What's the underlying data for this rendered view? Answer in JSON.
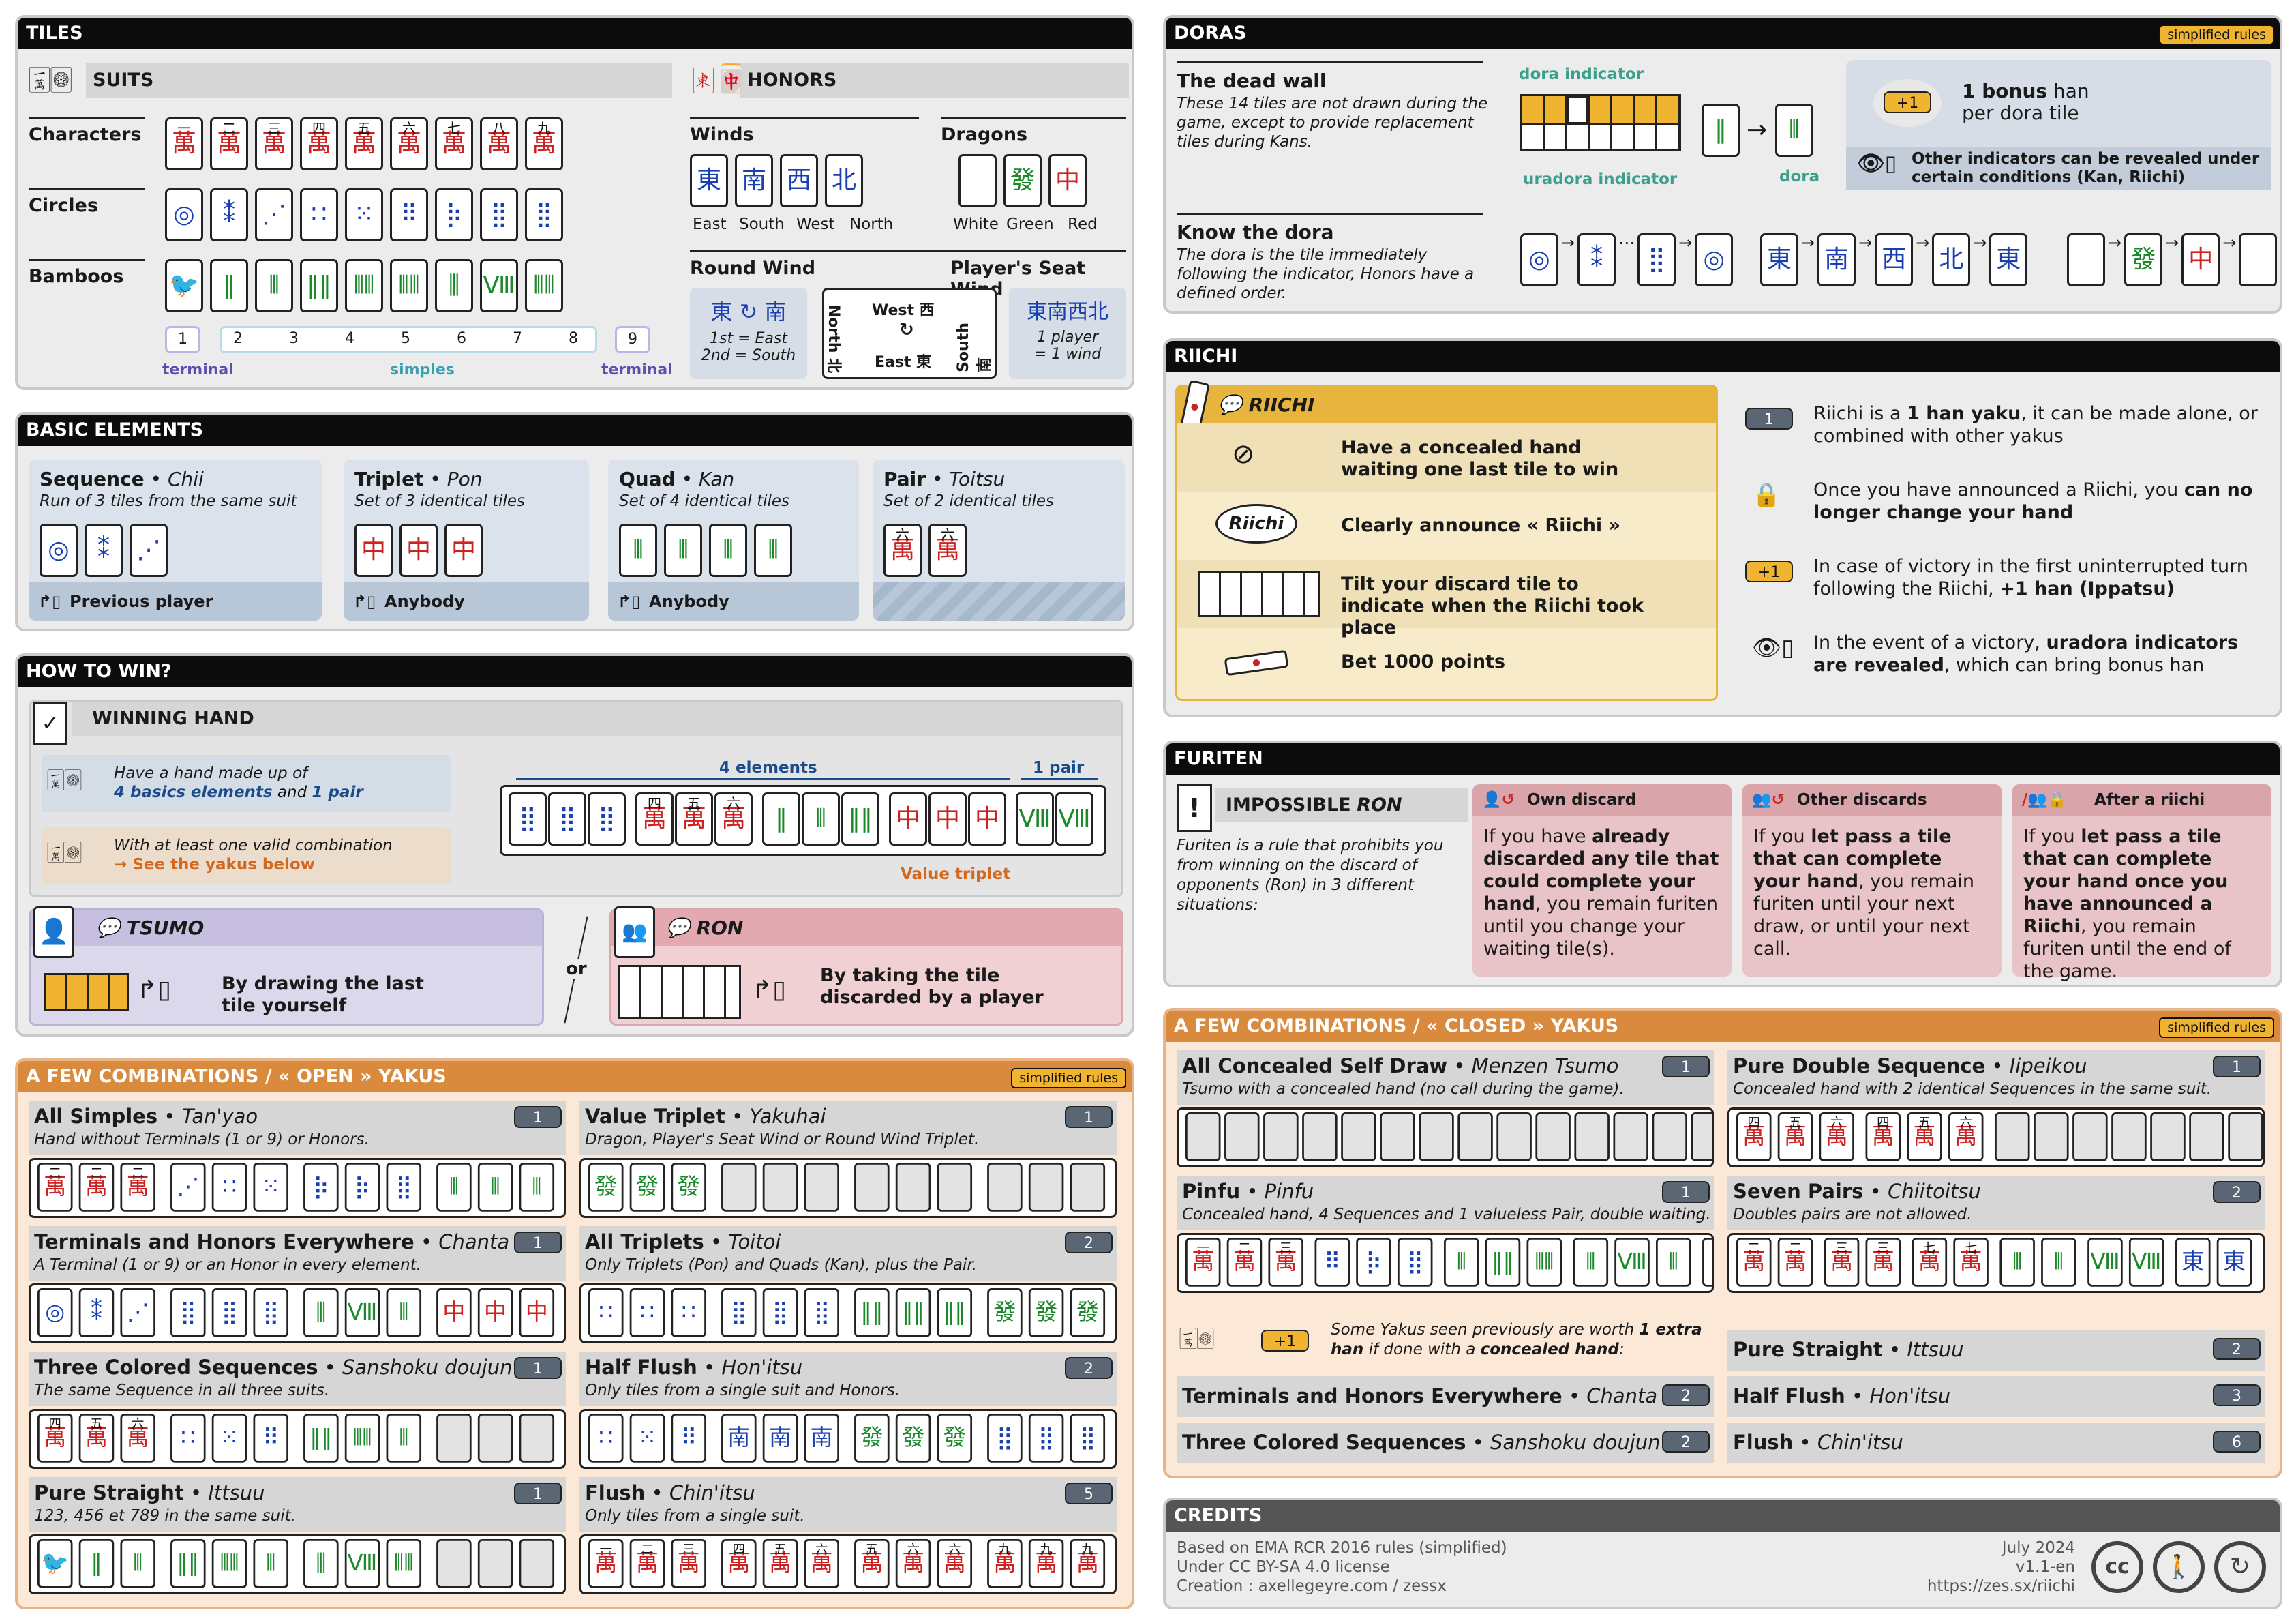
{
  "tiles": {
    "title": "TILES",
    "suits": "SUITS",
    "honors": "HONORS",
    "characters": "Characters",
    "circles": "Circles",
    "bamboos": "Bamboos",
    "winds": "Winds",
    "dragons": "Dragons",
    "wind_names": [
      "East",
      "South",
      "West",
      "North"
    ],
    "dragon_names": [
      "White",
      "Green",
      "Red"
    ],
    "round_wind": "Round Wind",
    "seat_wind": "Player's Seat Wind",
    "rw_1": "1st = East",
    "rw_2": "2nd = South",
    "seat_west": "West 西",
    "seat_east": "East 東",
    "seat_north": "North 北",
    "seat_south": "South 南",
    "seat_note1": "1 player",
    "seat_note2": "= 1 wind",
    "numbers": [
      "1",
      "2",
      "3",
      "4",
      "5",
      "6",
      "7",
      "8",
      "9"
    ],
    "terminal": "terminal",
    "simples": "simples",
    "char_glyphs": [
      "一",
      "二",
      "三",
      "四",
      "五",
      "六",
      "七",
      "八",
      "九"
    ],
    "wind_glyphs": [
      "東",
      "南",
      "西",
      "北"
    ],
    "dragon_glyphs": [
      "",
      "發",
      "中"
    ]
  },
  "basic": {
    "title": "BASIC ELEMENTS",
    "cards": [
      {
        "name": "Sequence",
        "alt": "Chii",
        "desc": "Run of 3 tiles from the same suit",
        "from": "Previous player"
      },
      {
        "name": "Triplet",
        "alt": "Pon",
        "desc": "Set of 3 identical tiles",
        "from": "Anybody"
      },
      {
        "name": "Quad",
        "alt": "Kan",
        "desc": "Set of 4 identical tiles",
        "from": "Anybody"
      },
      {
        "name": "Pair",
        "alt": "Toitsu",
        "desc": "Set of 2 identical tiles",
        "from": ""
      }
    ]
  },
  "howto": {
    "title": "HOW TO WIN?",
    "winning_hand": "WINNING HAND",
    "line1a": "Have a hand made up of",
    "line1b": "4 basics elements",
    "line1c": "and",
    "line1d": "1 pair",
    "line2a": "With at least one valid combination",
    "line2b": "→ See the yakus below",
    "four": "4 elements",
    "pair": "1 pair",
    "value_triplet": "Value triplet",
    "tsumo": "TSUMO",
    "tsumo_desc1": "By drawing the last",
    "tsumo_desc2": "tile yourself",
    "or": "or",
    "ron": "RON",
    "ron_desc1": "By taking the tile",
    "ron_desc2": "discarded by a player"
  },
  "open": {
    "title": "A FEW COMBINATIONS / « OPEN » YAKUS",
    "badge": "simplified rules",
    "yakus": [
      {
        "name": "All Simples",
        "alt": "Tan'yao",
        "desc": "Hand without Terminals (1 or 9) or Honors.",
        "han": "1"
      },
      {
        "name": "Value Triplet",
        "alt": "Yakuhai",
        "desc": "Dragon, Player's Seat Wind or Round Wind Triplet.",
        "han": "1"
      },
      {
        "name": "Terminals and Honors Everywhere",
        "alt": "Chanta",
        "desc": "A Terminal (1 or 9) or an Honor in every element.",
        "han": "1"
      },
      {
        "name": "All Triplets",
        "alt": "Toitoi",
        "desc": "Only Triplets (Pon) and Quads (Kan), plus the Pair.",
        "han": "2"
      },
      {
        "name": "Three Colored Sequences",
        "alt": "Sanshoku doujun",
        "desc": "The same Sequence in all three suits.",
        "han": "1"
      },
      {
        "name": "Half Flush",
        "alt": "Hon'itsu",
        "desc": "Only tiles from a single suit and Honors.",
        "han": "2"
      },
      {
        "name": "Pure Straight",
        "alt": "Ittsuu",
        "desc": "123, 456 et 789 in the same suit.",
        "han": "1"
      },
      {
        "name": "Flush",
        "alt": "Chin'itsu",
        "desc": "Only tiles from a single suit.",
        "han": "5"
      }
    ]
  },
  "doras": {
    "title": "DORAS",
    "badge": "simplified rules",
    "dead_wall": "The dead wall",
    "dead_desc": "These 14 tiles are not drawn during the game, except to provide replacement tiles during Kans.",
    "dora_indicator": "dora indicator",
    "uradora": "uradora indicator",
    "dora": "dora",
    "bonus_a": "1 bonus",
    "bonus_b": "han",
    "bonus_c": "per dora tile",
    "plus1": "+1",
    "other": "Other indicators can be revealed under certain conditions (Kan, Riichi)",
    "know": "Know the dora",
    "know_desc": "The dora is the tile immediately following the indicator, Honors have a defined order."
  },
  "riichi": {
    "title": "RIICHI",
    "label": "RIICHI",
    "steps": [
      "Have a concealed hand waiting one last tile to win",
      "Clearly announce « Riichi »",
      "Tilt your discard tile to indicate when the Riichi took place",
      "Bet 1000 points"
    ],
    "bubble": "Riichi",
    "notes": [
      {
        "badge": "1",
        "a": "Riichi is a ",
        "b": "1 han yaku",
        "c": ", it can be made alone, or combined with other yakus"
      },
      {
        "badge": "",
        "a": "Once you have announced a Riichi, you ",
        "b": "can no longer change your hand",
        "c": ""
      },
      {
        "badge": "+1",
        "a": "In case of victory in the first uninterrupted turn following the Riichi, ",
        "b": "+1 han (Ippatsu)",
        "c": ""
      },
      {
        "badge": "",
        "a": "In the event of a victory, ",
        "b": "uradora indicators are revealed",
        "c": ", which can bring bonus han"
      }
    ]
  },
  "furiten": {
    "title": "FURITEN",
    "impossible": "IMPOSSIBLE",
    "ron": "RON",
    "desc": "Furiten is a rule that prohibits you from winning on the discard of opponents (Ron) in 3 different situations:",
    "cols": [
      {
        "h": "Own discard",
        "a": "If you have ",
        "b": "already discarded any tile that could complete your hand",
        "c": ", you remain furiten until you change your waiting tile(s)."
      },
      {
        "h": "Other discards",
        "a": "If you ",
        "b": "let pass a tile that can complete your hand",
        "c": ", you remain furiten until your next draw, or until your next call."
      },
      {
        "h": "After a riichi",
        "a": "If you ",
        "b": "let pass a tile that can complete your hand once you have announced a Riichi",
        "c": ", you remain furiten until the end of the game."
      }
    ]
  },
  "closed": {
    "title": "A FEW COMBINATIONS / « CLOSED » YAKUS",
    "badge": "simplified rules",
    "yakus": [
      {
        "name": "All Concealed Self Draw",
        "alt": "Menzen Tsumo",
        "desc": "Tsumo with a concealed hand (no call during the game).",
        "han": "1"
      },
      {
        "name": "Pure Double Sequence",
        "alt": "Iipeikou",
        "desc": "Concealed hand with 2 identical Sequences in the same suit.",
        "han": "1"
      },
      {
        "name": "Pinfu",
        "alt": "Pinfu",
        "desc": "Concealed hand, 4 Sequences and 1 valueless Pair, double waiting.",
        "han": "1"
      },
      {
        "name": "Seven Pairs",
        "alt": "Chiitoitsu",
        "desc": "Doubles pairs are not allowed.",
        "han": "2"
      }
    ],
    "extra_a": "Some Yakus seen previously are worth ",
    "extra_b": "1 extra han",
    "extra_c": " if done with a ",
    "extra_d": "concealed hand",
    "list": [
      {
        "name": "Terminals and Honors Everywhere",
        "alt": "Chanta",
        "han": "2"
      },
      {
        "name": "Three Colored Sequences",
        "alt": "Sanshoku doujun",
        "han": "2"
      },
      {
        "name": "Pure Straight",
        "alt": "Ittsuu",
        "han": "2"
      },
      {
        "name": "Half Flush",
        "alt": "Hon'itsu",
        "han": "3"
      },
      {
        "name": "Flush",
        "alt": "Chin'itsu",
        "han": "6"
      }
    ]
  },
  "credits": {
    "title": "CREDITS",
    "l1": "Based on EMA RCR 2016 rules (simplified)",
    "l2": "Under CC BY-SA 4.0 license",
    "l3": "Creation : axellegeyre.com / zessx",
    "r1": "July 2024",
    "r2": "v1.1-en",
    "r3": "https://zes.sx/riichi"
  }
}
